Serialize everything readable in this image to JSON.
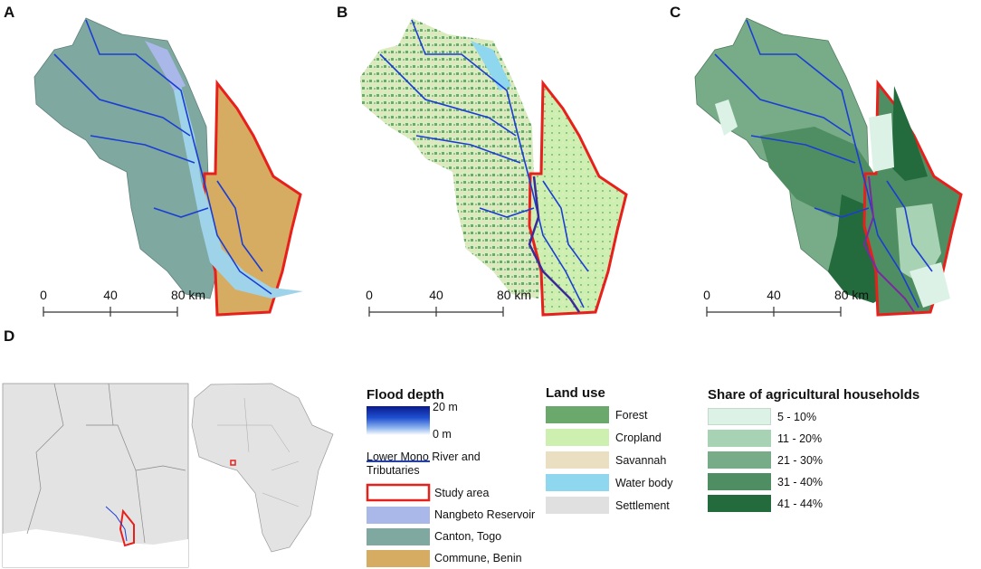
{
  "panels": {
    "a_label": "A",
    "b_label": "B",
    "c_label": "C",
    "d_label": "D"
  },
  "scale_bar": {
    "ticks": [
      "0",
      "40",
      "80 km"
    ]
  },
  "colors": {
    "canton_togo": "#7fa8a0",
    "commune_benin": "#d6ab62",
    "study_area": "#e8201c",
    "river": "#1a3ed4",
    "reservoir": "#a9b8e8",
    "forest": "#6aa86c",
    "cropland": "#cdf0b0",
    "savannah": "#eadfc0",
    "water_body": "#8fd6ef",
    "settlement": "#e0e0e0",
    "share_1": "#ddf2e6",
    "share_2": "#a8d2b4",
    "share_3": "#78ac88",
    "share_4": "#4f8e62",
    "share_5": "#236a3c"
  },
  "legend_flood": {
    "title": "Flood depth",
    "max": "20 m",
    "min": "0 m",
    "items": [
      {
        "label": "Lower Mono River and Tributaries",
        "icon": "river-line"
      },
      {
        "label": "Study area",
        "icon": "study-area-outline"
      },
      {
        "label": "Nangbeto Reservoir",
        "icon": "reservoir-fill"
      },
      {
        "label": "Canton, Togo",
        "icon": "canton-fill"
      },
      {
        "label": "Commune, Benin",
        "icon": "commune-fill"
      }
    ]
  },
  "legend_land_use": {
    "title": "Land use",
    "items": [
      {
        "label": "Forest",
        "color_key": "forest"
      },
      {
        "label": "Cropland",
        "color_key": "cropland"
      },
      {
        "label": "Savannah",
        "color_key": "savannah"
      },
      {
        "label": "Water body",
        "color_key": "water_body"
      },
      {
        "label": "Settlement",
        "color_key": "settlement"
      }
    ]
  },
  "legend_share": {
    "title": "Share of agricultural households",
    "items": [
      {
        "label": "5 - 10%",
        "color_key": "share_1"
      },
      {
        "label": "11 - 20%",
        "color_key": "share_2"
      },
      {
        "label": "21 - 30%",
        "color_key": "share_3"
      },
      {
        "label": "31 - 40%",
        "color_key": "share_4"
      },
      {
        "label": "41 - 44%",
        "color_key": "share_5"
      }
    ]
  }
}
